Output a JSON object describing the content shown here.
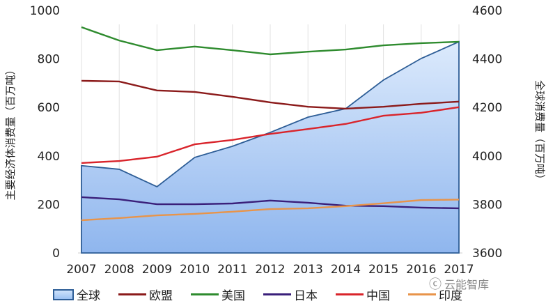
{
  "chart_data": {
    "type": "line",
    "categories": [
      "2007",
      "2008",
      "2009",
      "2010",
      "2011",
      "2012",
      "2013",
      "2014",
      "2015",
      "2016",
      "2017"
    ],
    "y_left": {
      "label": "主要经济体消费量（百万吨）",
      "range": [
        0,
        1000
      ],
      "ticks": [
        0,
        200,
        400,
        600,
        800,
        1000
      ]
    },
    "y_right": {
      "label": "全球消费量（百万吨）",
      "range": [
        3600,
        4600
      ],
      "ticks": [
        3600,
        3800,
        4000,
        4200,
        4400,
        4600
      ]
    },
    "grid": "vertical",
    "legend_position": "bottom",
    "series": [
      {
        "name": "全球",
        "axis": "right",
        "type": "area",
        "color": "#2d5d96",
        "values": [
          3960,
          3945,
          3873,
          3994,
          4040,
          4097,
          4160,
          4195,
          4313,
          4402,
          4471
        ]
      },
      {
        "name": "欧盟",
        "axis": "left",
        "color": "#8b1a1a",
        "values": [
          710,
          707,
          670,
          664,
          644,
          621,
          603,
          595,
          603,
          615,
          624
        ]
      },
      {
        "name": "美国",
        "axis": "left",
        "color": "#2e8b2e",
        "values": [
          931,
          876,
          836,
          851,
          836,
          819,
          830,
          839,
          856,
          865,
          871
        ]
      },
      {
        "name": "日本",
        "axis": "left",
        "color": "#3a1f7a",
        "values": [
          230,
          221,
          201,
          201,
          204,
          216,
          207,
          195,
          193,
          187,
          184
        ]
      },
      {
        "name": "中国",
        "axis": "left",
        "color": "#d9242b",
        "values": [
          371,
          379,
          397,
          448,
          466,
          491,
          511,
          532,
          566,
          578,
          601
        ]
      },
      {
        "name": "印度",
        "axis": "left",
        "color": "#e8944a",
        "values": [
          135,
          144,
          155,
          161,
          170,
          181,
          184,
          193,
          205,
          218,
          220
        ]
      }
    ]
  },
  "watermark": {
    "text": "云能智库",
    "icon": "wechat-icon"
  }
}
